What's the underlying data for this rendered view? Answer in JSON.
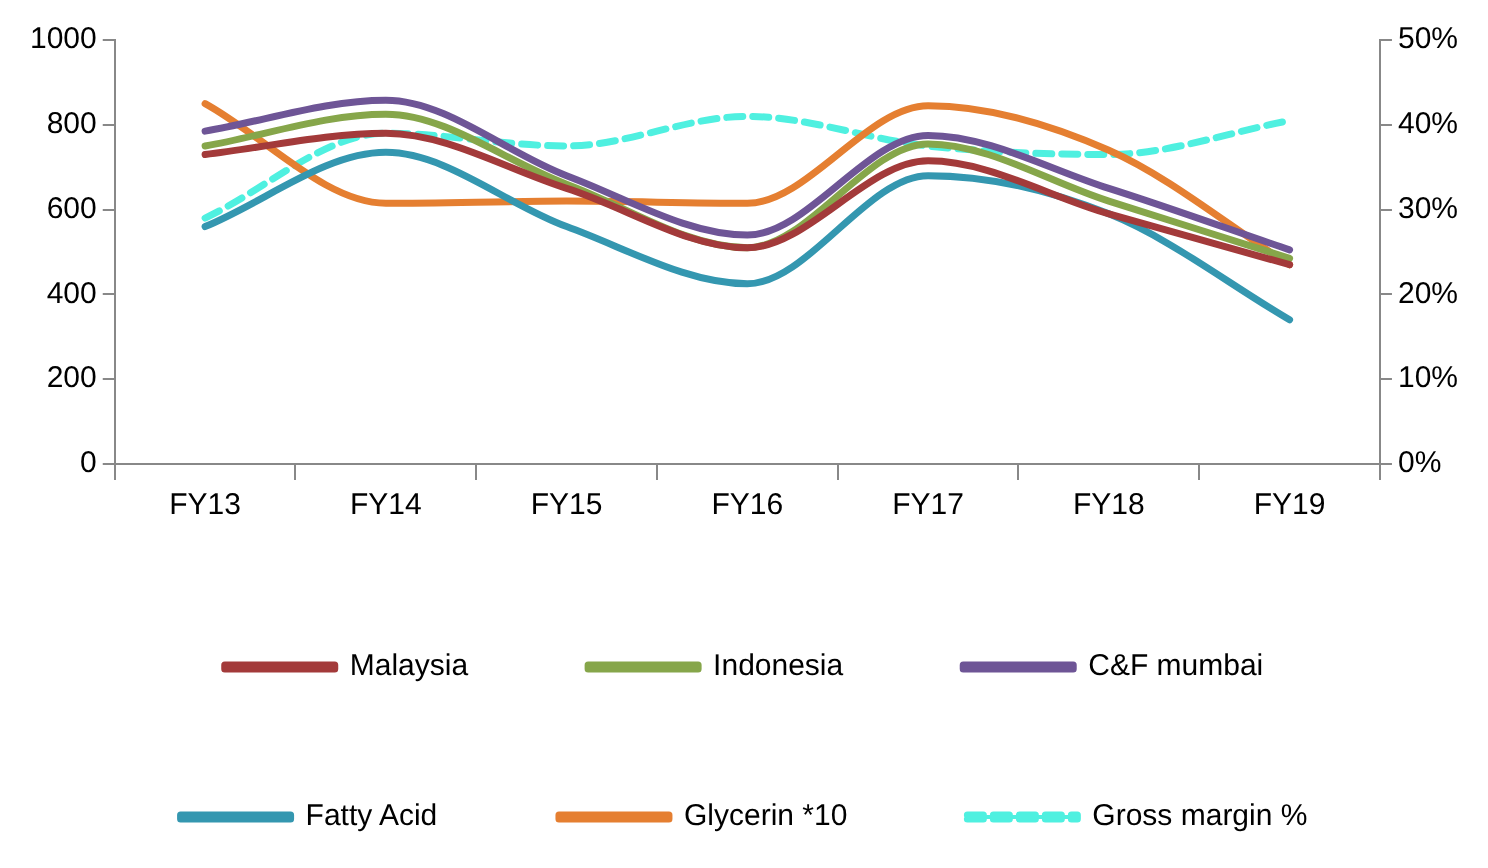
{
  "chart_data": {
    "type": "line",
    "categories": [
      "FY13",
      "FY14",
      "FY15",
      "FY16",
      "FY17",
      "FY18",
      "FY19"
    ],
    "series": [
      {
        "name": "Malaysia",
        "color": "#a33a3a",
        "values": [
          730,
          780,
          650,
          510,
          715,
          590,
          470
        ]
      },
      {
        "name": "Indonesia",
        "color": "#86a64a",
        "values": [
          750,
          825,
          660,
          510,
          755,
          620,
          485
        ]
      },
      {
        "name": "C&F mumbai",
        "color": "#6e5596",
        "values": [
          785,
          858,
          680,
          540,
          775,
          650,
          505
        ]
      },
      {
        "name": "Fatty Acid",
        "color": "#3497b0",
        "values": [
          560,
          735,
          560,
          425,
          680,
          590,
          340
        ]
      },
      {
        "name": "Glycerin *10",
        "color": "#e57f31",
        "values": [
          850,
          615,
          620,
          615,
          845,
          740,
          470
        ]
      },
      {
        "name": "Gross margin %",
        "color": "#4ff0e0",
        "axis": "y2",
        "line_style": "dashed",
        "values": [
          29,
          39,
          37.5,
          41,
          37.5,
          36.5,
          40.5
        ]
      }
    ],
    "ylim": [
      0,
      1000
    ],
    "yticks": [
      0,
      200,
      400,
      600,
      800,
      1000
    ],
    "y2lim": [
      0,
      50
    ],
    "y2ticks": [
      {
        "value": 0,
        "label": "0%"
      },
      {
        "value": 10,
        "label": "10%"
      },
      {
        "value": 20,
        "label": "20%"
      },
      {
        "value": 30,
        "label": "30%"
      },
      {
        "value": 40,
        "label": "40%"
      },
      {
        "value": 50,
        "label": "50%"
      }
    ],
    "grid": false,
    "legend": "bottom",
    "marker": "none",
    "line_style": "solid"
  }
}
